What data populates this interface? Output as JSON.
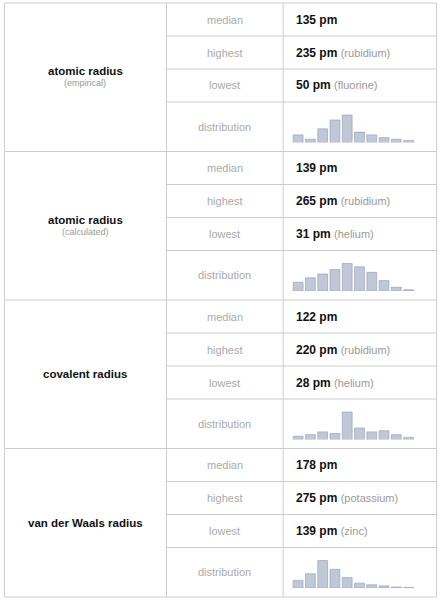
{
  "chart_data": [
    {
      "type": "bar",
      "title": "atomic radius",
      "subtitle": "(empirical)",
      "annotations": [
        [
          "median",
          "135 pm"
        ],
        [
          "highest",
          "235 pm",
          "(rubidium)"
        ],
        [
          "lowest",
          "50 pm",
          "(fluorine)"
        ],
        [
          "distribution"
        ]
      ],
      "categories": [
        null,
        null,
        null,
        null,
        null,
        null,
        null,
        null,
        null,
        null
      ],
      "values": [
        0.28,
        0.12,
        0.5,
        0.82,
        1.0,
        0.38,
        0.28,
        0.18,
        0.12,
        0.08
      ],
      "color": "#c0c8d8",
      "ylim": [
        0,
        1.15
      ],
      "grid": false,
      "tick_labels": false
    },
    {
      "type": "bar",
      "title": "atomic radius",
      "subtitle": "(calculated)",
      "annotations": [
        [
          "median",
          "139 pm"
        ],
        [
          "highest",
          "265 pm",
          "(rubidium)"
        ],
        [
          "lowest",
          "31 pm",
          "(helium)"
        ],
        [
          "distribution"
        ]
      ],
      "categories": [
        null,
        null,
        null,
        null,
        null,
        null,
        null,
        null,
        null,
        null
      ],
      "values": [
        0.32,
        0.48,
        0.62,
        0.78,
        1.0,
        0.88,
        0.68,
        0.38,
        0.14,
        0.05
      ],
      "color": "#c0c8d8",
      "ylim": [
        0,
        1.15
      ],
      "grid": false,
      "tick_labels": false
    },
    {
      "type": "bar",
      "title": "covalent radius",
      "annotations": [
        [
          "median",
          "122 pm"
        ],
        [
          "highest",
          "220 pm",
          "(rubidium)"
        ],
        [
          "lowest",
          "28 pm",
          "(helium)"
        ],
        [
          "distribution"
        ]
      ],
      "categories": [
        null,
        null,
        null,
        null,
        null,
        null,
        null,
        null,
        null,
        null
      ],
      "values": [
        0.12,
        0.18,
        0.28,
        0.22,
        1.0,
        0.42,
        0.28,
        0.32,
        0.18,
        0.08
      ],
      "color": "#c0c8d8",
      "ylim": [
        0,
        1.15
      ],
      "grid": false,
      "tick_labels": false
    },
    {
      "type": "bar",
      "title": "van der Waals radius",
      "annotations": [
        [
          "median",
          "178 pm"
        ],
        [
          "highest",
          "275 pm",
          "(potassium)"
        ],
        [
          "lowest",
          "139 pm",
          "(zinc)"
        ],
        [
          "distribution"
        ]
      ],
      "categories": [
        null,
        null,
        null,
        null,
        null,
        null,
        null,
        null,
        null,
        null
      ],
      "values": [
        0.28,
        0.52,
        1.0,
        0.68,
        0.38,
        0.18,
        0.12,
        0.08,
        0.04,
        0.02
      ],
      "color": "#c0c8d8",
      "ylim": [
        0,
        1.15
      ],
      "grid": false,
      "tick_labels": false
    }
  ]
}
